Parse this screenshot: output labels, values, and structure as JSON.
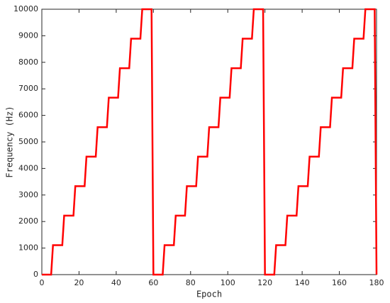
{
  "chart_data": {
    "type": "line",
    "xlabel": "Epoch",
    "ylabel": "Frequency (Hz)",
    "x": [
      0,
      5,
      6,
      11,
      12,
      17,
      18,
      23,
      24,
      29,
      30,
      35,
      36,
      41,
      42,
      47,
      48,
      53,
      54,
      59,
      60,
      65,
      66,
      71,
      72,
      77,
      78,
      83,
      84,
      89,
      90,
      95,
      96,
      101,
      102,
      107,
      108,
      113,
      114,
      119,
      120,
      125,
      126,
      131,
      132,
      137,
      138,
      143,
      144,
      149,
      150,
      155,
      156,
      161,
      162,
      167,
      168,
      173,
      174,
      179,
      180
    ],
    "values": [
      0,
      0,
      1111,
      1111,
      2222,
      2222,
      3333,
      3333,
      4444,
      4444,
      5556,
      5556,
      6667,
      6667,
      7778,
      7778,
      8889,
      8889,
      10000,
      10000,
      0,
      0,
      1111,
      1111,
      2222,
      2222,
      3333,
      3333,
      4444,
      4444,
      5556,
      5556,
      6667,
      6667,
      7778,
      7778,
      8889,
      8889,
      10000,
      10000,
      0,
      0,
      1111,
      1111,
      2222,
      2222,
      3333,
      3333,
      4444,
      4444,
      5556,
      5556,
      6667,
      6667,
      7778,
      7778,
      8889,
      8889,
      10000,
      10000,
      0
    ],
    "color": "#ff0000",
    "xlim": [
      0,
      180
    ],
    "xticks": [
      0,
      20,
      40,
      60,
      80,
      100,
      120,
      140,
      160,
      180
    ],
    "ylim": [
      0,
      10000
    ],
    "yticks": [
      0,
      1000,
      2000,
      3000,
      4000,
      5000,
      6000,
      7000,
      8000,
      9000,
      10000
    ],
    "grid": false
  }
}
